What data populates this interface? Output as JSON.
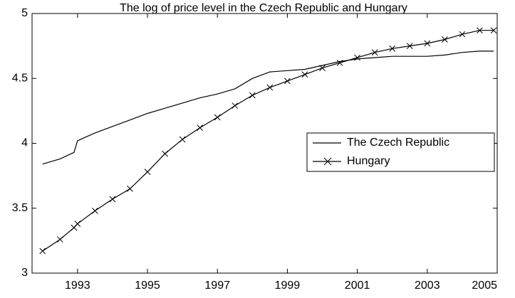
{
  "chart_data": {
    "type": "line",
    "title": "The log of price level in the Czech Republic and Hungary",
    "x": [
      1992.0,
      1992.5,
      1992.9,
      1993.0,
      1993.5,
      1994.0,
      1994.5,
      1995.0,
      1995.5,
      1996.0,
      1996.5,
      1997.0,
      1997.5,
      1998.0,
      1998.5,
      1999.0,
      1999.5,
      2000.0,
      2000.5,
      2001.0,
      2001.5,
      2002.0,
      2002.5,
      2003.0,
      2003.5,
      2004.0,
      2004.5,
      2004.9
    ],
    "series": [
      {
        "name": "The Czech Republic",
        "color": "#000000",
        "marker": "none",
        "values": [
          3.84,
          3.88,
          3.93,
          4.02,
          4.08,
          4.13,
          4.18,
          4.23,
          4.27,
          4.31,
          4.35,
          4.38,
          4.42,
          4.5,
          4.55,
          4.56,
          4.57,
          4.6,
          4.63,
          4.65,
          4.66,
          4.67,
          4.67,
          4.67,
          4.68,
          4.7,
          4.71,
          4.71
        ]
      },
      {
        "name": "Hungary",
        "color": "#000000",
        "marker": "x",
        "values": [
          3.17,
          3.26,
          3.35,
          3.38,
          3.48,
          3.57,
          3.65,
          3.78,
          3.92,
          4.03,
          4.12,
          4.2,
          4.29,
          4.37,
          4.43,
          4.48,
          4.53,
          4.58,
          4.62,
          4.66,
          4.7,
          4.73,
          4.75,
          4.77,
          4.8,
          4.84,
          4.87,
          4.87
        ]
      }
    ],
    "xlim": [
      1991.7,
      2005
    ],
    "xticks": [
      1993,
      1995,
      1997,
      1999,
      2001,
      2003,
      2005
    ],
    "ylim": [
      3,
      5
    ],
    "yticks": [
      3,
      3.5,
      4,
      4.5,
      5
    ],
    "grid": false,
    "legend": "right"
  }
}
